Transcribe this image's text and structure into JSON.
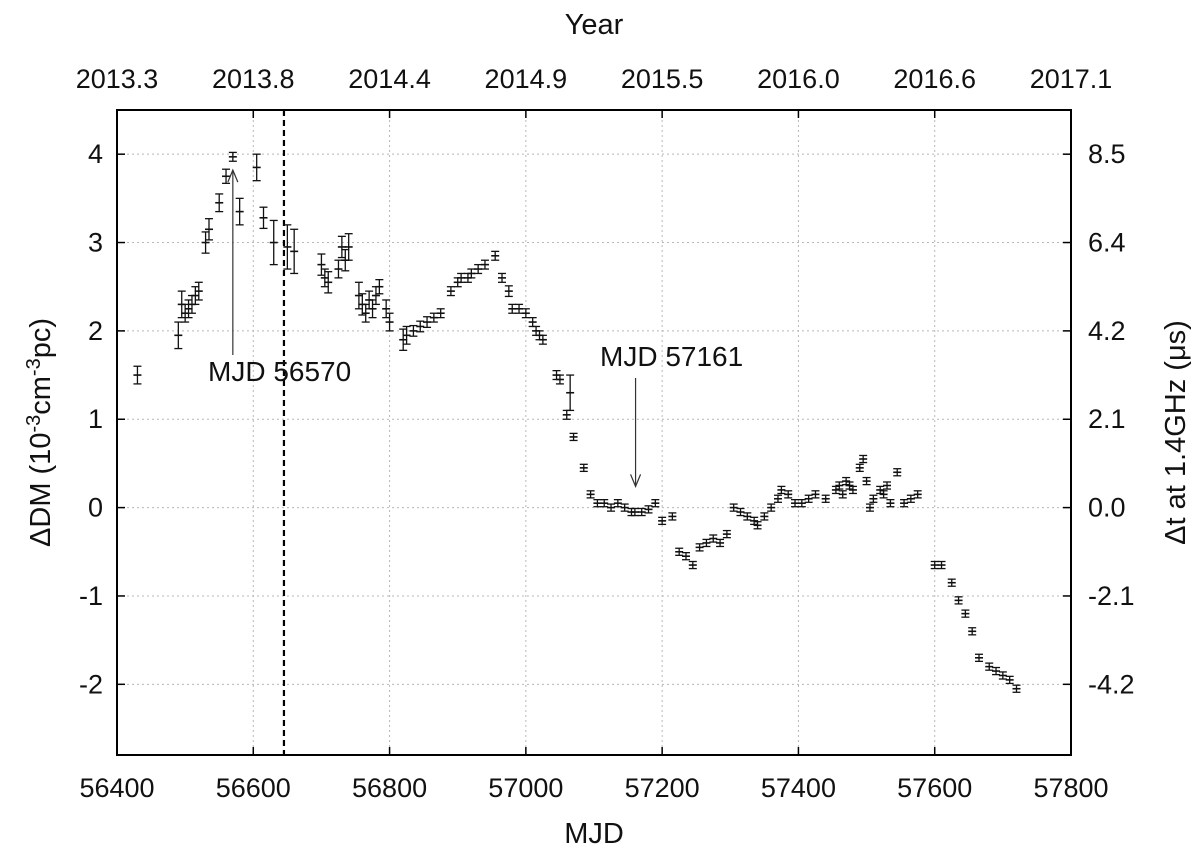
{
  "chart_data": {
    "type": "scatter",
    "xlabel": "MJD",
    "ylabel": "ΔDM (10⁻³cm⁻³pc)",
    "ylabel_parts": [
      "ΔDM (10",
      "-3",
      "cm",
      "-3",
      "pc)"
    ],
    "top_xlabel": "Year",
    "right_ylabel": "Δt at 1.4GHz (μs)",
    "xlim": [
      56400,
      57800
    ],
    "ylim": [
      -2.8,
      4.5
    ],
    "x_ticks": [
      56400,
      56600,
      56800,
      57000,
      57200,
      57400,
      57600,
      57800
    ],
    "y_ticks": [
      -2,
      -1,
      0,
      1,
      2,
      3,
      4
    ],
    "top_ticks": [
      {
        "x": 56400,
        "label": "2013.3"
      },
      {
        "x": 56600,
        "label": "2013.8"
      },
      {
        "x": 56800,
        "label": "2014.4"
      },
      {
        "x": 57000,
        "label": "2014.9"
      },
      {
        "x": 57200,
        "label": "2015.5"
      },
      {
        "x": 57400,
        "label": "2016.0"
      },
      {
        "x": 57600,
        "label": "2016.6"
      },
      {
        "x": 57800,
        "label": "2017.1"
      }
    ],
    "right_ticks": [
      {
        "y": -2,
        "label": "-4.2"
      },
      {
        "y": -1,
        "label": "-2.1"
      },
      {
        "y": 0,
        "label": "0.0"
      },
      {
        "y": 1,
        "label": "2.1"
      },
      {
        "y": 2,
        "label": "4.2"
      },
      {
        "y": 3,
        "label": "6.4"
      },
      {
        "y": 4,
        "label": "8.5"
      }
    ],
    "grid": true,
    "vertical_line_x": 56645,
    "annotations": [
      {
        "text": "MJD 56570",
        "x": 56570,
        "y": 3.82
      },
      {
        "text": "MJD 57161",
        "x": 57161,
        "y": 0.24
      }
    ],
    "series": [
      {
        "x": [
          56430,
          56490,
          56495,
          56500,
          56505,
          56510,
          56515,
          56520,
          56530,
          56535,
          56550,
          56560,
          56570,
          56580,
          56605,
          56615,
          56630,
          56650,
          56660,
          56700,
          56705,
          56710,
          56725,
          56730,
          56735,
          56740,
          56755,
          56760,
          56765,
          56770,
          56775,
          56780,
          56785,
          56795,
          56800,
          56820,
          56825,
          56835,
          56845,
          56855,
          56865,
          56875,
          56890,
          56900,
          56905,
          56915,
          56920,
          56930,
          56940,
          56955,
          56965,
          56975,
          56980,
          56990,
          57000,
          57010,
          57015,
          57020,
          57025,
          57045,
          57050,
          57060,
          57065,
          57070,
          57085,
          57095,
          57105,
          57115,
          57125,
          57135,
          57145,
          57155,
          57160,
          57170,
          57180,
          57190,
          57200,
          57215,
          57225,
          57235,
          57245,
          57255,
          57265,
          57275,
          57285,
          57295,
          57305,
          57315,
          57325,
          57335,
          57340,
          57350,
          57360,
          57370,
          57375,
          57385,
          57395,
          57405,
          57415,
          57425,
          57440,
          57455,
          57460,
          57465,
          57470,
          57475,
          57480,
          57490,
          57495,
          57500,
          57505,
          57510,
          57520,
          57525,
          57530,
          57535,
          57545,
          57555,
          57565,
          57575,
          57600,
          57610,
          57625,
          57635,
          57645,
          57655,
          57665,
          57680,
          57690,
          57700,
          57710,
          57720
        ],
        "y": [
          1.5,
          1.95,
          2.3,
          2.2,
          2.25,
          2.3,
          2.4,
          2.45,
          3.0,
          3.15,
          3.45,
          3.75,
          3.97,
          3.35,
          3.85,
          3.28,
          3.0,
          2.95,
          2.9,
          2.75,
          2.6,
          2.55,
          2.7,
          2.95,
          2.8,
          2.95,
          2.4,
          2.3,
          2.2,
          2.35,
          2.25,
          2.4,
          2.5,
          2.25,
          2.1,
          1.9,
          1.95,
          2.0,
          2.05,
          2.1,
          2.15,
          2.2,
          2.45,
          2.55,
          2.6,
          2.6,
          2.65,
          2.7,
          2.75,
          2.85,
          2.6,
          2.45,
          2.25,
          2.25,
          2.2,
          2.1,
          2.0,
          1.95,
          1.9,
          1.5,
          1.45,
          1.05,
          1.3,
          0.8,
          0.45,
          0.15,
          0.05,
          0.05,
          0.0,
          0.05,
          0.0,
          -0.05,
          -0.05,
          -0.05,
          -0.02,
          0.05,
          -0.15,
          -0.1,
          -0.5,
          -0.55,
          -0.65,
          -0.45,
          -0.4,
          -0.35,
          -0.4,
          -0.3,
          0.0,
          -0.05,
          -0.1,
          -0.15,
          -0.2,
          -0.1,
          0.0,
          0.1,
          0.2,
          0.15,
          0.05,
          0.05,
          0.1,
          0.15,
          0.1,
          0.2,
          0.25,
          0.15,
          0.3,
          0.25,
          0.2,
          0.45,
          0.55,
          0.3,
          0.0,
          0.1,
          0.2,
          0.15,
          0.25,
          0.05,
          0.4,
          0.05,
          0.1,
          0.15,
          -0.65,
          -0.65,
          -0.85,
          -1.05,
          -1.2,
          -1.4,
          -1.7,
          -1.8,
          -1.85,
          -1.9,
          -1.95,
          -2.05
        ],
        "err": [
          0.1,
          0.15,
          0.15,
          0.1,
          0.1,
          0.1,
          0.1,
          0.1,
          0.12,
          0.12,
          0.1,
          0.08,
          0.05,
          0.15,
          0.15,
          0.12,
          0.25,
          0.25,
          0.25,
          0.12,
          0.1,
          0.12,
          0.1,
          0.12,
          0.12,
          0.15,
          0.15,
          0.12,
          0.1,
          0.1,
          0.1,
          0.1,
          0.08,
          0.1,
          0.1,
          0.12,
          0.1,
          0.06,
          0.06,
          0.06,
          0.05,
          0.05,
          0.05,
          0.05,
          0.05,
          0.05,
          0.05,
          0.05,
          0.05,
          0.05,
          0.05,
          0.06,
          0.05,
          0.05,
          0.05,
          0.05,
          0.05,
          0.05,
          0.05,
          0.05,
          0.05,
          0.05,
          0.2,
          0.04,
          0.04,
          0.04,
          0.04,
          0.04,
          0.04,
          0.04,
          0.04,
          0.04,
          0.04,
          0.04,
          0.04,
          0.04,
          0.04,
          0.04,
          0.04,
          0.04,
          0.04,
          0.04,
          0.04,
          0.04,
          0.04,
          0.04,
          0.04,
          0.04,
          0.04,
          0.04,
          0.04,
          0.04,
          0.04,
          0.04,
          0.04,
          0.04,
          0.04,
          0.04,
          0.04,
          0.04,
          0.04,
          0.04,
          0.04,
          0.04,
          0.04,
          0.04,
          0.04,
          0.04,
          0.04,
          0.04,
          0.04,
          0.04,
          0.04,
          0.04,
          0.04,
          0.04,
          0.04,
          0.04,
          0.04,
          0.04,
          0.04,
          0.04,
          0.04,
          0.04,
          0.04,
          0.04,
          0.04,
          0.04,
          0.04,
          0.04,
          0.04,
          0.04
        ]
      }
    ]
  }
}
